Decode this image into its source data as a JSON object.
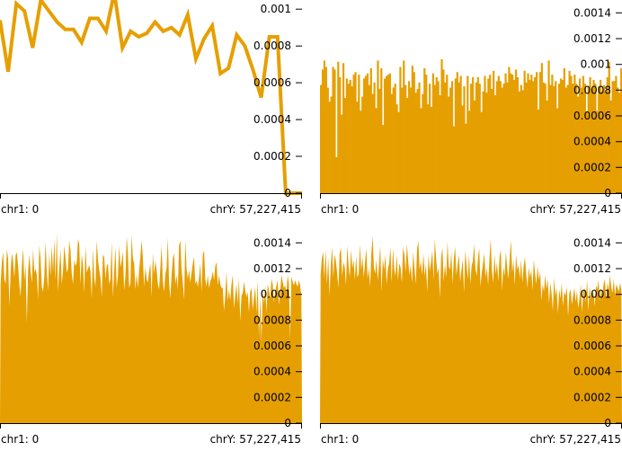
{
  "colors": {
    "series": "#E69F00",
    "axis": "#000000",
    "background": "#ffffff"
  },
  "chart_data": [
    {
      "type": "line",
      "ylim": [
        0,
        0.00105
      ],
      "yticks": [
        {
          "label": "0",
          "value": 0
        },
        {
          "label": "0.0002",
          "value": 0.0002
        },
        {
          "label": "0.0004",
          "value": 0.0004
        },
        {
          "label": "0.0006",
          "value": 0.0006
        },
        {
          "label": "0.0008",
          "value": 0.0008
        },
        {
          "label": "0.001",
          "value": 0.001
        }
      ],
      "x_start_label": "chr1: 0",
      "x_end_label": "chrY: 57,227,415",
      "series": [
        {
          "values": [
            0.00094,
            0.00066,
            0.00103,
            0.00099,
            0.00079,
            0.00105,
            0.00099,
            0.00093,
            0.00089,
            0.00089,
            0.00082,
            0.00095,
            0.00095,
            0.00088,
            0.00109,
            0.00079,
            0.00088,
            0.00085,
            0.00087,
            0.00093,
            0.00088,
            0.0009,
            0.00086,
            0.00097,
            0.00073,
            0.00084,
            0.00091,
            0.00065,
            0.00068,
            0.00086,
            0.0008,
            0.00067,
            0.00052,
            0.00085,
            0.00085,
            0.0,
            0.0,
            0.0
          ]
        }
      ]
    },
    {
      "type": "bar",
      "ylim": [
        0,
        0.0015
      ],
      "yticks": [
        {
          "label": "0",
          "value": 0
        },
        {
          "label": "0.0002",
          "value": 0.0002
        },
        {
          "label": "0.0004",
          "value": 0.0004
        },
        {
          "label": "0.0006",
          "value": 0.0006
        },
        {
          "label": "0.0008",
          "value": 0.0008
        },
        {
          "label": "0.001",
          "value": 0.001
        },
        {
          "label": "0.0012",
          "value": 0.0012
        },
        {
          "label": "0.0014",
          "value": 0.0014
        }
      ],
      "x_start_label": "chr1: 0",
      "x_end_label": "chrY: 57,227,415",
      "series": [
        {
          "values": [
            0.00084,
            0.00096,
            0.00103,
            0.00098,
            0.00082,
            0.00071,
            0.00075,
            0.00098,
            0.00096,
            0.00028,
            0.00102,
            0.0009,
            0.00061,
            0.00101,
            0.00074,
            0.00089,
            0.00085,
            0.00088,
            0.00083,
            0.00092,
            0.00094,
            0.00071,
            0.00092,
            0.00064,
            0.00075,
            0.00089,
            0.00091,
            0.00093,
            0.00084,
            0.00097,
            0.00077,
            0.00086,
            0.00066,
            0.00103,
            0.00081,
            0.00097,
            0.00053,
            0.00089,
            0.00091,
            0.00092,
            0.00093,
            0.00077,
            0.00082,
            0.00085,
            0.00069,
            0.00063,
            0.00098,
            0.00082,
            0.00103,
            0.00084,
            0.00074,
            0.00087,
            0.00082,
            0.00099,
            0.00094,
            0.00078,
            0.00081,
            0.00086,
            0.00066,
            0.00077,
            0.00097,
            0.00092,
            0.00069,
            0.00085,
            0.00067,
            0.00093,
            0.00084,
            0.0009,
            0.00087,
            0.00076,
            0.00104,
            0.00096,
            0.00086,
            0.00092,
            0.00075,
            0.00082,
            0.00087,
            0.00052,
            0.00089,
            0.00094,
            0.00086,
            0.00091,
            0.00068,
            0.00083,
            0.00054,
            0.00091,
            0.00064,
            0.00085,
            0.0009,
            0.00072,
            0.00086,
            0.0009,
            0.00085,
            0.00063,
            0.00079,
            0.00091,
            0.00078,
            0.00089,
            0.00092,
            0.00081,
            0.00095,
            0.00076,
            0.00087,
            0.00091,
            0.00087,
            0.00082,
            0.00085,
            0.00093,
            0.00086,
            0.00098,
            0.00093,
            0.00092,
            0.00088,
            0.00096,
            0.0009,
            0.00079,
            0.00084,
            0.0008,
            0.00095,
            0.00086,
            0.00093,
            0.00088,
            0.00092,
            0.00087,
            0.0009,
            0.00094,
            0.00065,
            0.00094,
            0.00101,
            0.00086,
            0.00085,
            0.00072,
            0.00103,
            0.00084,
            0.00092,
            0.00083,
            0.00087,
            0.00066,
            0.00085,
            0.00089,
            0.00088,
            0.00097,
            0.00082,
            0.00084,
            0.00095,
            0.00091,
            0.00085,
            0.00092,
            0.00085,
            0.00075,
            0.00089,
            0.00082,
            0.00091,
            0.00085,
            0.00063,
            0.00083,
            0.0009,
            0.00081,
            0.00088,
            0.00085,
            0.00064,
            0.00083,
            0.00088,
            0.00079,
            0.00084,
            0.00078,
            0.0009,
            0.00102,
            0.00072,
            0.00087,
            0.00087,
            0.00091,
            0.00082,
            0.00078,
            0.00097
          ]
        }
      ]
    },
    {
      "type": "area",
      "ylim": [
        0,
        0.0015
      ],
      "yticks": [
        {
          "label": "0",
          "value": 0
        },
        {
          "label": "0.0002",
          "value": 0.0002
        },
        {
          "label": "0.0004",
          "value": 0.0004
        },
        {
          "label": "0.0006",
          "value": 0.0006
        },
        {
          "label": "0.0008",
          "value": 0.0008
        },
        {
          "label": "0.001",
          "value": 0.001
        },
        {
          "label": "0.0012",
          "value": 0.0012
        },
        {
          "label": "0.0014",
          "value": 0.0014
        }
      ],
      "x_start_label": "chr1: 0",
      "x_end_label": "chrY: 57,227,415",
      "series": [
        {
          "values": [
            0.00108,
            0.00125,
            0.00133,
            0.00112,
            0.00108,
            0.00135,
            0.00128,
            0.00091,
            0.00117,
            0.00132,
            0.00126,
            0.00113,
            0.0013,
            0.00133,
            0.00122,
            0.00108,
            0.00098,
            0.00122,
            0.00136,
            0.00111,
            0.00123,
            0.00078,
            0.00118,
            0.00131,
            0.00118,
            0.00109,
            0.00135,
            0.00117,
            0.0012,
            0.00115,
            0.00096,
            0.00138,
            0.00128,
            0.00106,
            0.00102,
            0.00114,
            0.00141,
            0.00117,
            0.00103,
            0.00132,
            0.00114,
            0.00138,
            0.00117,
            0.00143,
            0.00111,
            0.00148,
            0.00102,
            0.00121,
            0.00135,
            0.00108,
            0.00119,
            0.00138,
            0.00128,
            0.00117,
            0.0012,
            0.00142,
            0.00134,
            0.00116,
            0.00108,
            0.00127,
            0.00122,
            0.00125,
            0.00143,
            0.00139,
            0.00108,
            0.00131,
            0.00123,
            0.00101,
            0.00138,
            0.00117,
            0.0012,
            0.00123,
            0.00118,
            0.00097,
            0.00136,
            0.00113,
            0.00106,
            0.00142,
            0.00127,
            0.00119,
            0.00113,
            0.00098,
            0.00131,
            0.00129,
            0.00112,
            0.00122,
            0.00124,
            0.00108,
            0.00112,
            0.00141,
            0.00098,
            0.00118,
            0.00137,
            0.00105,
            0.00115,
            0.00138,
            0.00121,
            0.00126,
            0.00133,
            0.00103,
            0.00114,
            0.00145,
            0.00132,
            0.00105,
            0.00109,
            0.00146,
            0.00128,
            0.00124,
            0.00104,
            0.00116,
            0.00105,
            0.00119,
            0.0013,
            0.00142,
            0.00128,
            0.00106,
            0.00121,
            0.00112,
            0.00109,
            0.00118,
            0.00124,
            0.00098,
            0.00132,
            0.00116,
            0.00126,
            0.00119,
            0.00108,
            0.00104,
            0.00121,
            0.00138,
            0.0011,
            0.00102,
            0.00116,
            0.00121,
            0.00144,
            0.00109,
            0.00097,
            0.00115,
            0.00128,
            0.00132,
            0.00108,
            0.00115,
            0.00104,
            0.00138,
            0.00142,
            0.00119,
            0.00109,
            0.00096,
            0.00143,
            0.0012,
            0.00112,
            0.00119,
            0.00109,
            0.00117,
            0.00124,
            0.00129,
            0.00108,
            0.00111,
            0.00106,
            0.00113,
            0.00124,
            0.00102,
            0.00131,
            0.00134,
            0.00112,
            0.00106,
            0.00115,
            0.00105,
            0.0011,
            0.00113,
            0.00118,
            0.00111,
            0.00122,
            0.00125,
            0.00107,
            0.00115,
            0.00108,
            0.00105,
            0.00105,
            0.00087,
            0.00099,
            0.00118,
            0.00095,
            0.00104,
            0.00095,
            0.00108,
            0.00115,
            0.00089,
            0.00099,
            0.00108,
            0.00093,
            0.00113,
            0.00079,
            0.00099,
            0.00101,
            0.0011,
            0.00103,
            0.00098,
            0.00102,
            0.00086,
            0.00102,
            0.00105,
            0.00088,
            0.00097,
            0.00106,
            0.00086,
            0.00111,
            0.00067,
            0.00099,
            0.00063,
            0.00104,
            0.00093,
            0.00107,
            0.00086,
            0.00108,
            0.00103,
            0.00097,
            0.00112,
            0.00108,
            0.00094,
            0.00102,
            0.00107,
            0.00111,
            0.00092,
            0.00102,
            0.00115,
            0.0011,
            0.00105,
            0.00107,
            0.00101,
            0.00115,
            0.00108,
            0.00066,
            0.00114,
            0.0011,
            0.00107,
            0.00111,
            0.00108,
            0.00106,
            0.00111,
            0.00107,
            0.00098
          ]
        }
      ]
    },
    {
      "type": "area",
      "ylim": [
        0,
        0.0015
      ],
      "yticks": [
        {
          "label": "0",
          "value": 0
        },
        {
          "label": "0.0002",
          "value": 0.0002
        },
        {
          "label": "0.0004",
          "value": 0.0004
        },
        {
          "label": "0.0006",
          "value": 0.0006
        },
        {
          "label": "0.0008",
          "value": 0.0008
        },
        {
          "label": "0.001",
          "value": 0.001
        },
        {
          "label": "0.0012",
          "value": 0.0012
        },
        {
          "label": "0.0014",
          "value": 0.0014
        }
      ],
      "x_start_label": "chr1: 0",
      "x_end_label": "chrY: 57,227,415",
      "series": [
        {
          "values": [
            0.00115,
            0.00128,
            0.00133,
            0.00112,
            0.00135,
            0.00108,
            0.00129,
            0.00099,
            0.00122,
            0.00137,
            0.00113,
            0.00131,
            0.00126,
            0.00117,
            0.00105,
            0.00132,
            0.00136,
            0.00114,
            0.00125,
            0.00121,
            0.00107,
            0.00138,
            0.00123,
            0.00113,
            0.00135,
            0.0012,
            0.00127,
            0.00111,
            0.0013,
            0.00113,
            0.00116,
            0.00139,
            0.00119,
            0.00129,
            0.00113,
            0.00125,
            0.00136,
            0.00112,
            0.00121,
            0.00106,
            0.00132,
            0.00145,
            0.00121,
            0.00116,
            0.00127,
            0.00111,
            0.00123,
            0.00138,
            0.00102,
            0.00128,
            0.00119,
            0.00131,
            0.00108,
            0.0012,
            0.00124,
            0.00137,
            0.00109,
            0.00136,
            0.0012,
            0.00114,
            0.00131,
            0.00111,
            0.00124,
            0.00121,
            0.00109,
            0.00137,
            0.00131,
            0.00117,
            0.00139,
            0.00126,
            0.00115,
            0.00123,
            0.00109,
            0.00133,
            0.0012,
            0.00108,
            0.00135,
            0.00142,
            0.00119,
            0.00126,
            0.00115,
            0.00132,
            0.00114,
            0.00124,
            0.00102,
            0.00131,
            0.00118,
            0.00125,
            0.00134,
            0.00111,
            0.00143,
            0.00128,
            0.00116,
            0.00121,
            0.00097,
            0.00129,
            0.00136,
            0.0011,
            0.00124,
            0.00113,
            0.00141,
            0.00122,
            0.00119,
            0.00133,
            0.00108,
            0.00128,
            0.00137,
            0.00115,
            0.00123,
            0.00131,
            0.0011,
            0.00119,
            0.00127,
            0.00101,
            0.00134,
            0.00123,
            0.00112,
            0.00131,
            0.00108,
            0.00122,
            0.00126,
            0.00139,
            0.0012,
            0.00114,
            0.00128,
            0.00136,
            0.00106,
            0.00117,
            0.00124,
            0.00132,
            0.00113,
            0.00121,
            0.00107,
            0.00127,
            0.00143,
            0.00119,
            0.00109,
            0.00131,
            0.00116,
            0.00125,
            0.0011,
            0.00129,
            0.00135,
            0.00103,
            0.00122,
            0.00114,
            0.00133,
            0.00121,
            0.00112,
            0.00128,
            0.00142,
            0.00117,
            0.00126,
            0.00107,
            0.00131,
            0.00119,
            0.00123,
            0.00112,
            0.00127,
            0.00109,
            0.00122,
            0.00129,
            0.00116,
            0.00105,
            0.00121,
            0.00113,
            0.00119,
            0.00103,
            0.00127,
            0.00116,
            0.00108,
            0.00122,
            0.00111,
            0.00118,
            0.00095,
            0.00108,
            0.00102,
            0.00115,
            0.00104,
            0.00112,
            0.00093,
            0.00109,
            0.00101,
            0.00087,
            0.00113,
            0.00099,
            0.00105,
            0.00085,
            0.00104,
            0.00097,
            0.00109,
            0.00091,
            0.00102,
            0.00099,
            0.00106,
            0.00083,
            0.00101,
            0.00104,
            0.00092,
            0.00099,
            0.00105,
            0.00094,
            0.00103,
            0.00089,
            0.00097,
            0.00108,
            0.00086,
            0.00102,
            0.00105,
            0.00094,
            0.00112,
            0.00087,
            0.00106,
            0.00098,
            0.00103,
            0.00101,
            0.00091,
            0.00107,
            0.00104,
            0.00111,
            0.00095,
            0.00105,
            0.00099,
            0.00108,
            0.00112,
            0.00097,
            0.00109,
            0.00103,
            0.00115,
            0.00106,
            0.00101,
            0.00112,
            0.00099,
            0.00108,
            0.00105,
            0.00102,
            0.00109,
            0.00103
          ]
        }
      ]
    }
  ]
}
